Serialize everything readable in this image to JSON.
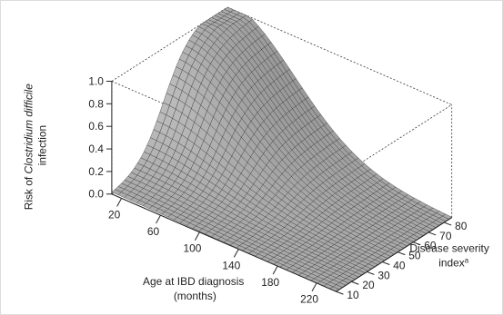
{
  "chart_data": {
    "type": "surface3d",
    "z_axis": {
      "label_prefix": "Risk of ",
      "label_italic": "Clostridium difficile",
      "label_suffix": "infection",
      "ticks": [
        "0.0",
        "0.2",
        "0.4",
        "0.6",
        "0.8",
        "1.0"
      ],
      "range": [
        0,
        1
      ]
    },
    "x_axis": {
      "label_line1": "Age at IBD diagnosis",
      "label_line2": "(months)",
      "ticks": [
        "20",
        "60",
        "100",
        "140",
        "180",
        "220"
      ],
      "range": [
        10,
        240
      ]
    },
    "y_axis": {
      "label_line1": "Disease severity",
      "label_line2": "index",
      "label_superscript": "a",
      "ticks": [
        "10",
        "20",
        "30",
        "40",
        "50",
        "60",
        "70",
        "80"
      ],
      "range": [
        10,
        85
      ]
    },
    "surface": {
      "description_model": "bell-shaped risk surface peaking at low age and high severity",
      "peak_risk": 1.0,
      "peak_at": {
        "age_months": 20,
        "severity": 85
      },
      "min_risk": 0.0
    },
    "colors": {
      "surface_fill": "#9a9a9a",
      "surface_highlight": "#cfcfcf",
      "mesh_line": "#2a2a2a",
      "box_line": "#333333"
    }
  }
}
